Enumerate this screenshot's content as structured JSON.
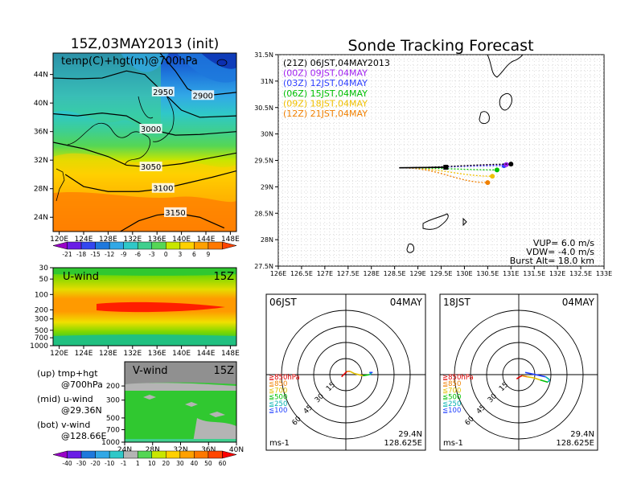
{
  "chart_data": [
    {
      "type": "heatmap",
      "title": "15Z,03MAY2013 (init)",
      "label": "temp(C)+hgt(m)@700hPa",
      "x_ticks": [
        "120E",
        "124E",
        "128E",
        "132E",
        "136E",
        "140E",
        "144E",
        "148E"
      ],
      "y_ticks": [
        "24N",
        "28N",
        "32N",
        "36N",
        "40N",
        "44N"
      ],
      "xlim": [
        119,
        149
      ],
      "ylim": [
        22,
        47
      ],
      "contours": [
        {
          "value": 2900,
          "points": [
            [
              136,
              47.5
            ],
            [
              139,
              44.5
            ],
            [
              141,
              42
            ],
            [
              143.5,
              41
            ],
            [
              149,
              41.5
            ]
          ]
        },
        {
          "value": 2950,
          "points": [
            [
              119,
              43.5
            ],
            [
              123,
              43.4
            ],
            [
              127,
              43.5
            ],
            [
              131,
              44.5
            ],
            [
              134,
              44
            ],
            [
              137,
              41.5
            ],
            [
              140,
              39
            ],
            [
              143,
              38
            ],
            [
              149,
              38.2
            ]
          ]
        },
        {
          "value": 3000,
          "points": [
            [
              119,
              38.5
            ],
            [
              123,
              38.2
            ],
            [
              127,
              38.6
            ],
            [
              131,
              38.2
            ],
            [
              135,
              36.3
            ],
            [
              139,
              35.5
            ],
            [
              143,
              35.6
            ],
            [
              149,
              36
            ]
          ]
        },
        {
          "value": 3050,
          "points": [
            [
              119,
              34.5
            ],
            [
              124,
              33.6
            ],
            [
              128,
              32.5
            ],
            [
              131,
              31.3
            ],
            [
              135,
              31
            ],
            [
              140,
              31.5
            ],
            [
              144,
              32.2
            ],
            [
              149,
              33
            ]
          ]
        },
        {
          "value": 3100,
          "points": [
            [
              121,
              30
            ],
            [
              124,
              28.3
            ],
            [
              128,
              27.6
            ],
            [
              133,
              27.6
            ],
            [
              137,
              28
            ],
            [
              141,
              28.8
            ],
            [
              145,
              29.6
            ],
            [
              149,
              30.5
            ]
          ]
        },
        {
          "value": 3150,
          "points": [
            [
              130,
              22
            ],
            [
              133,
              23.5
            ],
            [
              136,
              24.3
            ],
            [
              139,
              24.6
            ],
            [
              143,
              24
            ],
            [
              147,
              22.5
            ]
          ]
        }
      ],
      "colorbar": [
        "-21",
        "-18",
        "-15",
        "-12",
        "-9",
        "-6",
        "-3",
        "0",
        "3",
        "6",
        "9"
      ]
    },
    {
      "type": "heatmap",
      "title": "U-wind",
      "time": "15Z",
      "x_ticks": [
        "120E",
        "124E",
        "128E",
        "132E",
        "136E",
        "140E",
        "144E",
        "148E"
      ],
      "y_ticks": [
        "30",
        "50",
        "100",
        "200",
        "300",
        "500",
        "700",
        "1000"
      ]
    },
    {
      "type": "heatmap",
      "title": "V-wind",
      "time": "15Z",
      "x_ticks": [
        "24N",
        "28N",
        "32N",
        "36N",
        "40N"
      ],
      "y_ticks": [
        "200",
        "300",
        "500",
        "700",
        "1000"
      ],
      "colorbar": [
        "-40",
        "-30",
        "-20",
        "-10",
        "-1",
        "1",
        "10",
        "20",
        "30",
        "40",
        "50",
        "60"
      ]
    },
    {
      "type": "line",
      "title": "Sonde Tracking Forecast",
      "x_ticks": [
        "126E",
        "126.5E",
        "127E",
        "127.5E",
        "128E",
        "128.5E",
        "129E",
        "129.5E",
        "130E",
        "130.5E",
        "131E",
        "131.5E",
        "132E",
        "132.5E",
        "133E"
      ],
      "y_ticks": [
        "27.5N",
        "28N",
        "28.5N",
        "29N",
        "29.5N",
        "30N",
        "30.5N",
        "31N",
        "31.5N"
      ],
      "xlim": [
        126,
        133
      ],
      "ylim": [
        27.5,
        31.5
      ],
      "series": [
        {
          "name": "(21Z) 06JST,04MAY2013",
          "color": "#000000",
          "start": [
            128.6,
            29.36
          ],
          "end": [
            131.0,
            29.43
          ]
        },
        {
          "name": "(00Z) 09JST,04MAY",
          "color": "#a020f0",
          "start": [
            128.6,
            29.36
          ],
          "end": [
            130.9,
            29.42
          ]
        },
        {
          "name": "(03Z) 12JST,04MAY",
          "color": "#3040ff",
          "start": [
            128.6,
            29.36
          ],
          "end": [
            130.85,
            29.4
          ]
        },
        {
          "name": "(06Z) 15JST,04MAY",
          "color": "#00c000",
          "start": [
            128.6,
            29.36
          ],
          "end": [
            130.7,
            29.32
          ]
        },
        {
          "name": "(09Z) 18JST,04MAY",
          "color": "#f0c000",
          "start": [
            128.6,
            29.36
          ],
          "end": [
            130.6,
            29.2
          ]
        },
        {
          "name": "(12Z) 21JST,04MAY",
          "color": "#f08000",
          "start": [
            128.6,
            29.36
          ],
          "end": [
            130.5,
            29.08
          ]
        }
      ],
      "annotations": [
        "VUP=  6.0  m/s",
        "VDW= -4.0  m/s",
        "Burst Alt= 18.0  km"
      ]
    },
    {
      "type": "scatter",
      "title": "06JST",
      "date": "04MAY",
      "position": "29.4N",
      "lon": "128.625E",
      "unit": "ms-1",
      "ring_labels": [
        "15",
        "30",
        "45",
        "60"
      ],
      "levels": [
        {
          "label": "≧850hPa",
          "color": "#e00000"
        },
        {
          "label": "≦850",
          "color": "#f08000"
        },
        {
          "label": "≦700",
          "color": "#e0c000"
        },
        {
          "label": "≦500",
          "color": "#00c000"
        },
        {
          "label": "≦250",
          "color": "#00b0b0"
        },
        {
          "label": "≦100",
          "color": "#2040ff"
        }
      ],
      "hodograph": [
        [
          -4,
          -2
        ],
        [
          -1,
          1
        ],
        [
          1,
          3
        ],
        [
          4,
          3
        ],
        [
          8,
          1
        ],
        [
          16,
          -1
        ],
        [
          22,
          0
        ],
        [
          24,
          1
        ],
        [
          22,
          2
        ],
        [
          25,
          2
        ]
      ]
    },
    {
      "type": "scatter",
      "title": "18JST",
      "date": "04MAY",
      "position": "29.4N",
      "lon": "128.625E",
      "unit": "ms-1",
      "ring_labels": [
        "15",
        "30",
        "45",
        "60"
      ],
      "levels": [
        {
          "label": "≧850hPa",
          "color": "#e00000"
        },
        {
          "label": "≦850",
          "color": "#f08000"
        },
        {
          "label": "≦700",
          "color": "#e0c000"
        },
        {
          "label": "≦500",
          "color": "#00c000"
        },
        {
          "label": "≦250",
          "color": "#00b0b0"
        },
        {
          "label": "≦100",
          "color": "#2040ff"
        }
      ],
      "hodograph": [
        [
          -2,
          -4
        ],
        [
          1,
          -2
        ],
        [
          3,
          -1
        ],
        [
          8,
          -2
        ],
        [
          14,
          -3
        ],
        [
          20,
          -5
        ],
        [
          27,
          -7
        ],
        [
          29,
          -5
        ],
        [
          25,
          -2
        ],
        [
          6,
          2
        ]
      ]
    }
  ],
  "legend_text": {
    "up": "(up) tmp+hgt",
    "up2": "@700hPa",
    "mid": "(mid) u-wind",
    "mid2": "@29.36N",
    "bot": "(bot) v-wind",
    "bot2": "@128.66E"
  }
}
